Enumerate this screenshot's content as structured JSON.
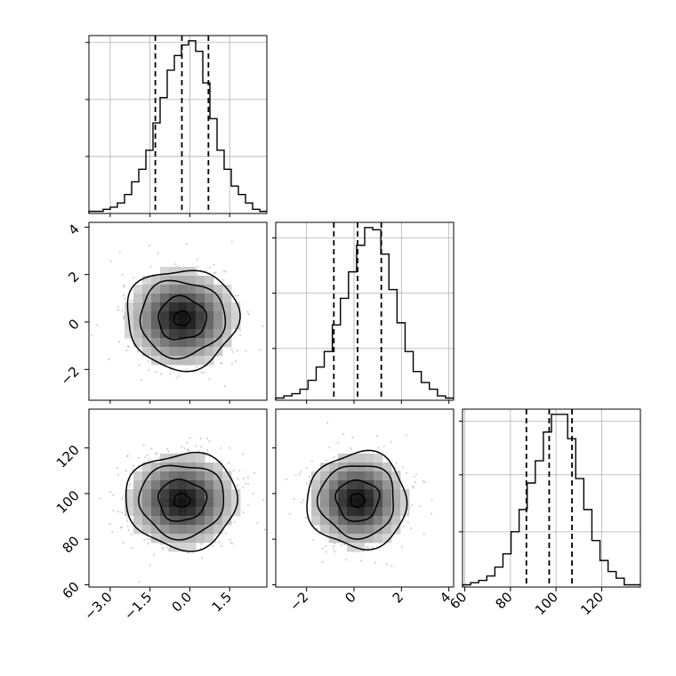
{
  "chart_data": {
    "type": "corner",
    "grid": true,
    "quantiles": [
      0.16,
      0.5,
      0.84
    ],
    "params": [
      {
        "mean": -0.3,
        "std": 1.0,
        "range": [
          -3.8,
          2.9
        ],
        "quantile_values": [
          -1.3,
          -0.3,
          0.7
        ]
      },
      {
        "mean": 0.15,
        "std": 1.0,
        "range": [
          -3.3,
          4.2
        ],
        "quantile_values": [
          -0.85,
          0.15,
          1.15
        ]
      },
      {
        "mean": 97,
        "std": 10,
        "range": [
          59,
          137
        ],
        "quantile_values": [
          87,
          97,
          107
        ]
      }
    ],
    "histograms": [
      {
        "param": 0,
        "x_range": [
          -3.8,
          2.9
        ],
        "bin_counts": [
          1,
          1,
          2,
          3,
          5,
          9,
          15,
          21,
          30,
          43,
          55,
          68,
          75,
          80,
          82,
          77,
          62,
          45,
          30,
          21,
          13,
          9,
          5,
          2,
          1
        ],
        "y_grid": [
          0.33,
          0.66,
          0.99
        ]
      },
      {
        "param": 1,
        "x_range": [
          -3.3,
          4.2
        ],
        "bin_counts": [
          1,
          2,
          3,
          5,
          9,
          15,
          22,
          34,
          46,
          58,
          70,
          78,
          77,
          66,
          50,
          35,
          22,
          13,
          8,
          5,
          2,
          1
        ],
        "y_grid": [
          0.3,
          0.62,
          0.94
        ]
      },
      {
        "param": 2,
        "x_range": [
          59,
          137
        ],
        "bin_counts": [
          1,
          2,
          3,
          5,
          9,
          15,
          25,
          35,
          47,
          57,
          70,
          78,
          78,
          67,
          49,
          35,
          21,
          12,
          7,
          4,
          1,
          1
        ],
        "y_grid": [
          0.32,
          0.65,
          0.96
        ]
      }
    ],
    "panels": [
      {
        "position": "row 1, col 0",
        "x_param": 0,
        "y_param": 1,
        "mean": [
          -0.3,
          0.15
        ],
        "contour_radii_sigma": [
          0.3,
          0.9,
          1.6,
          2.1
        ]
      },
      {
        "position": "row 2, col 0",
        "x_param": 0,
        "y_param": 2,
        "mean": [
          -0.3,
          97
        ],
        "contour_radii_sigma": [
          0.3,
          0.9,
          1.6,
          2.1
        ]
      },
      {
        "position": "row 2, col 1",
        "x_param": 1,
        "y_param": 2,
        "mean": [
          0.15,
          97
        ],
        "contour_radii_sigma": [
          0.3,
          0.9,
          1.6,
          2.1
        ]
      }
    ],
    "axis_ticks": {
      "col0_x": [
        -3.0,
        -1.5,
        0.0,
        1.5
      ],
      "col0_x_labels": [
        "−3.0",
        "−1.5",
        "0.0",
        "1.5"
      ],
      "col1_x": [
        -2,
        0,
        2,
        4
      ],
      "col1_x_labels": [
        "−2",
        "0",
        "2",
        "4"
      ],
      "col2_x": [
        60,
        80,
        100,
        120
      ],
      "col2_x_labels": [
        "60",
        "80",
        "100",
        "120"
      ],
      "row1_y": [
        -2,
        0,
        2,
        4
      ],
      "row1_y_labels": [
        "−2",
        "0",
        "2",
        "4"
      ],
      "row2_y": [
        60,
        80,
        100,
        120
      ],
      "row2_y_labels": [
        "60",
        "80",
        "100",
        "120"
      ]
    }
  }
}
